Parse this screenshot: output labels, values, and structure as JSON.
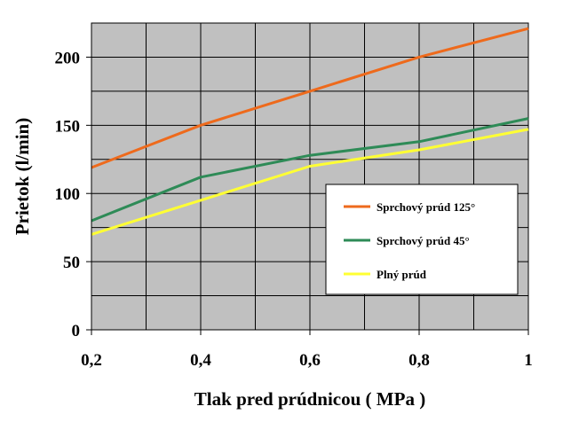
{
  "chart_data": {
    "type": "line",
    "title": "",
    "xlabel": "Tlak pred prúdnicou ( MPa )",
    "ylabel": "Prietok (l/min)",
    "xlim": [
      0.2,
      1.0
    ],
    "ylim": [
      0,
      225
    ],
    "x_ticks": [
      "0,2",
      "0,4",
      "0,6",
      "0,8",
      "1"
    ],
    "y_ticks": [
      "0",
      "50",
      "100",
      "150",
      "200"
    ],
    "grid": true,
    "plot_background": "#c0c0c0",
    "legend_position": "center-right",
    "series": [
      {
        "name": "Sprchový prúd 125°",
        "color": "#ee6a1c",
        "x": [
          0.2,
          0.4,
          0.6,
          0.8,
          1.0
        ],
        "y": [
          119,
          150,
          175,
          200,
          221
        ]
      },
      {
        "name": "Sprchový prúd 45°",
        "color": "#2e8b57",
        "x": [
          0.2,
          0.4,
          0.6,
          0.8,
          1.0
        ],
        "y": [
          80,
          112,
          128,
          138,
          155
        ]
      },
      {
        "name": "Plný prúd",
        "color": "#ffff33",
        "x": [
          0.2,
          0.4,
          0.6,
          0.8,
          1.0
        ],
        "y": [
          70,
          95,
          120,
          132,
          147
        ]
      }
    ]
  }
}
